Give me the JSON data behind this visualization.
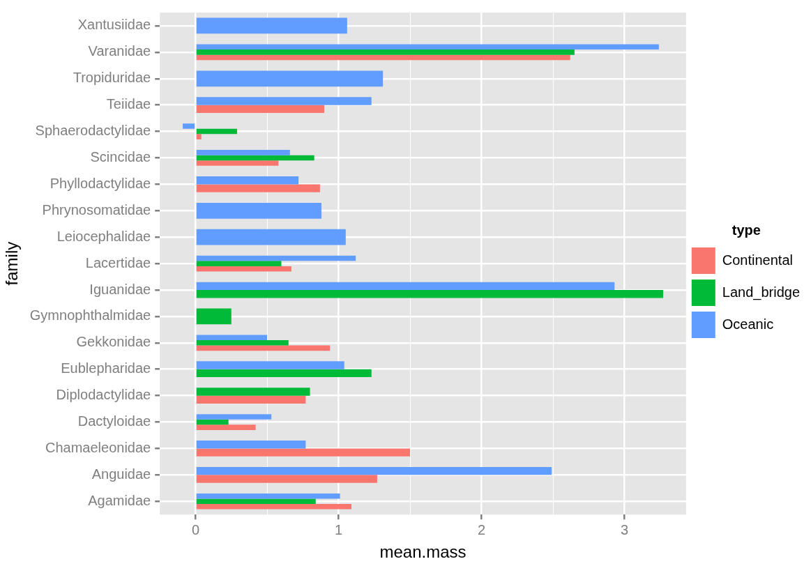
{
  "chart_data": {
    "type": "bar",
    "orientation": "horizontal",
    "xlabel": "mean.mass",
    "ylabel": "family",
    "legend_title": "type",
    "legend": "right",
    "grid": true,
    "categories": [
      "Xantusiidae",
      "Varanidae",
      "Tropiduridae",
      "Teiidae",
      "Sphaerodactylidae",
      "Scincidae",
      "Phyllodactylidae",
      "Phrynosomatidae",
      "Leiocephalidae",
      "Lacertidae",
      "Iguanidae",
      "Gymnophthalmidae",
      "Gekkonidae",
      "Eublepharidae",
      "Diplodactylidae",
      "Dactyloidae",
      "Chamaeleonidae",
      "Anguidae",
      "Agamidae"
    ],
    "xlim": [
      -0.25,
      3.43
    ],
    "xticks": [
      0,
      {
        "value": 0.5,
        "label": null
      },
      1,
      {
        "value": 1.5,
        "label": null
      },
      2,
      {
        "value": 2.5,
        "label": null
      },
      3
    ],
    "series": [
      {
        "name": "Continental",
        "color": "#f8766d",
        "values": [
          null,
          2.62,
          null,
          0.9,
          0.04,
          0.58,
          0.87,
          null,
          null,
          0.67,
          null,
          null,
          0.94,
          null,
          0.77,
          0.42,
          1.5,
          1.27,
          1.09
        ]
      },
      {
        "name": "Land_bridge",
        "color": "#00ba38",
        "values": [
          null,
          2.65,
          null,
          null,
          0.29,
          0.83,
          null,
          null,
          null,
          0.6,
          3.27,
          0.25,
          0.65,
          1.23,
          0.8,
          0.23,
          null,
          null,
          0.84
        ]
      },
      {
        "name": "Oceanic",
        "color": "#619cff",
        "values": [
          1.06,
          3.24,
          1.31,
          1.23,
          -0.09,
          0.66,
          0.72,
          0.88,
          1.05,
          1.12,
          2.93,
          null,
          0.5,
          1.04,
          null,
          0.53,
          0.77,
          2.49,
          1.01
        ]
      }
    ]
  }
}
